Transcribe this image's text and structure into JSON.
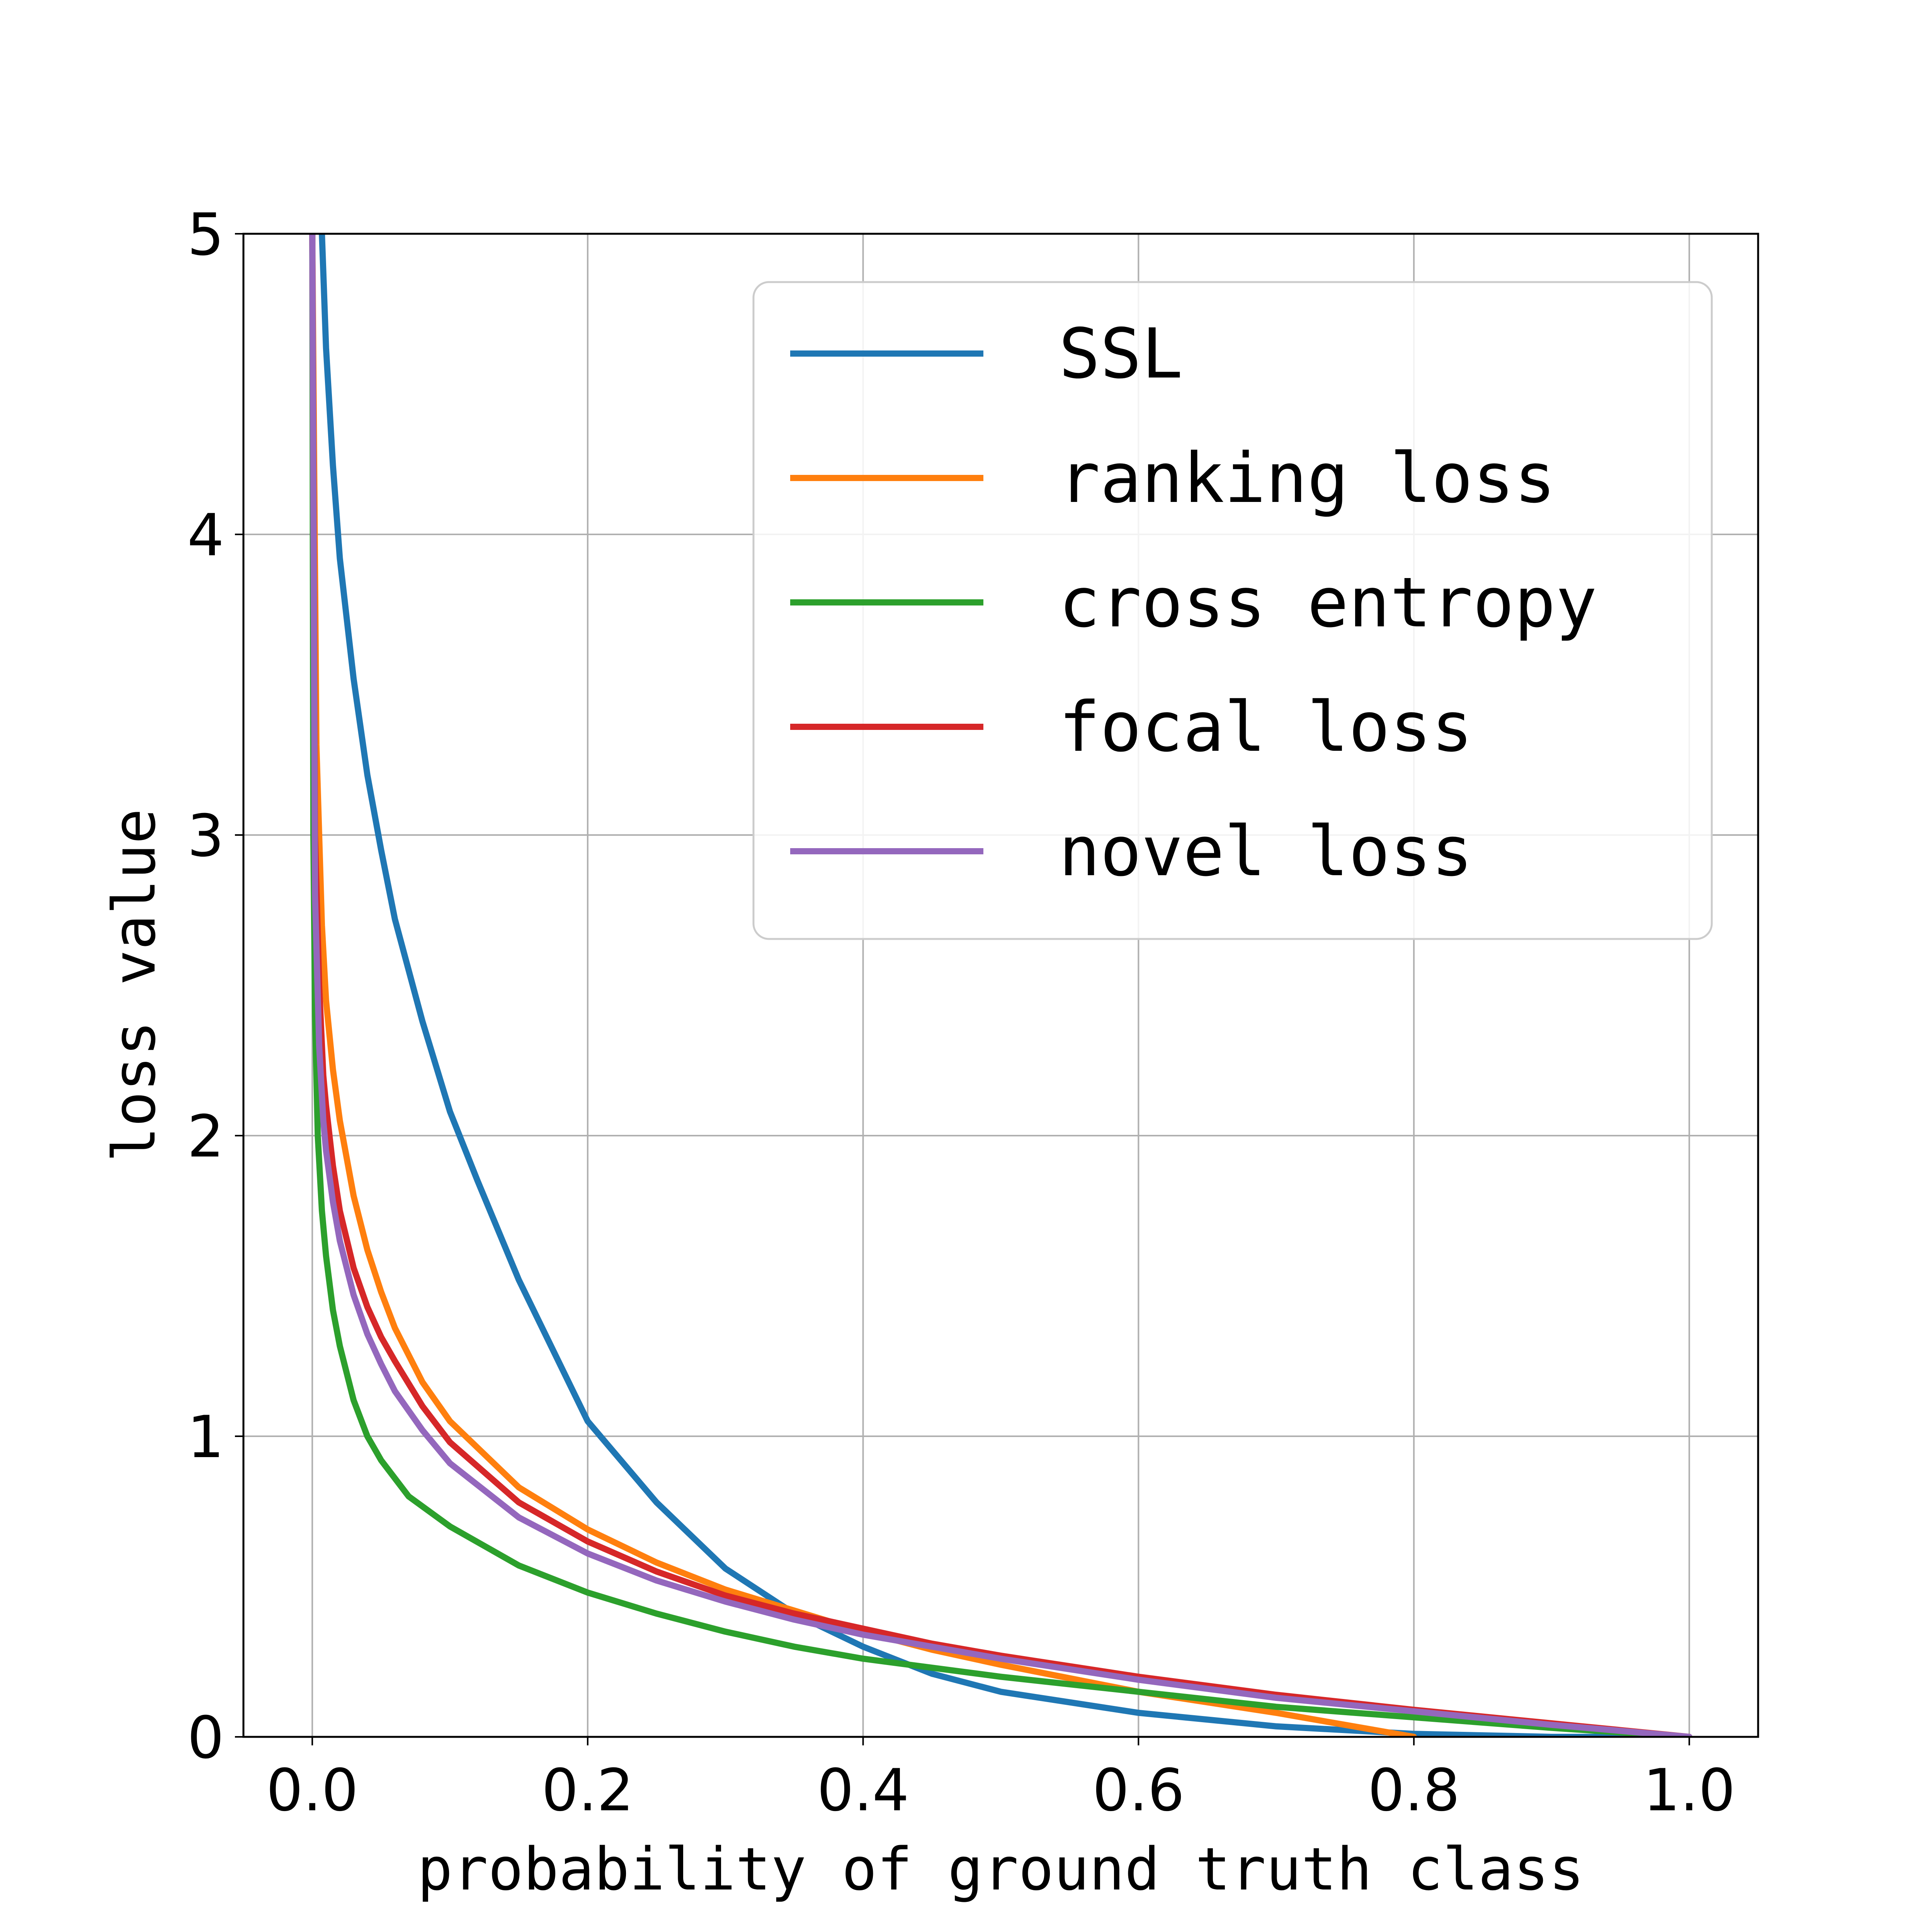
{
  "chart_data": {
    "type": "line",
    "title": "",
    "xlabel": "probability of ground truth class",
    "ylabel": "loss value",
    "xlim": [
      -0.05,
      1.05
    ],
    "ylim": [
      0,
      5
    ],
    "xticks": [
      0.0,
      0.2,
      0.4,
      0.6,
      0.8,
      1.0
    ],
    "xtick_labels": [
      "0.0",
      "0.2",
      "0.4",
      "0.6",
      "0.8",
      "1.0"
    ],
    "yticks": [
      0,
      1,
      2,
      3,
      4,
      5
    ],
    "ytick_labels": [
      "0",
      "1",
      "2",
      "3",
      "4",
      "5"
    ],
    "grid": true,
    "legend_position": "upper-right",
    "series": [
      {
        "name": "SSL",
        "color": "#1f77b4",
        "points": [
          [
            0.007,
            5.0
          ],
          [
            0.01,
            4.62
          ],
          [
            0.015,
            4.23
          ],
          [
            0.02,
            3.92
          ],
          [
            0.03,
            3.52
          ],
          [
            0.04,
            3.2
          ],
          [
            0.05,
            2.95
          ],
          [
            0.06,
            2.72
          ],
          [
            0.08,
            2.38
          ],
          [
            0.1,
            2.08
          ],
          [
            0.12,
            1.85
          ],
          [
            0.15,
            1.52
          ],
          [
            0.2,
            1.05
          ],
          [
            0.25,
            0.78
          ],
          [
            0.3,
            0.56
          ],
          [
            0.35,
            0.41
          ],
          [
            0.4,
            0.3
          ],
          [
            0.45,
            0.21
          ],
          [
            0.5,
            0.15
          ],
          [
            0.6,
            0.08
          ],
          [
            0.7,
            0.035
          ],
          [
            0.8,
            0.01
          ],
          [
            0.9,
            0.0
          ],
          [
            1.0,
            0.0
          ]
        ]
      },
      {
        "name": "ranking loss",
        "color": "#ff7f0e",
        "points": [
          [
            0.0,
            5.0
          ],
          [
            0.003,
            3.3
          ],
          [
            0.007,
            2.7
          ],
          [
            0.01,
            2.45
          ],
          [
            0.015,
            2.22
          ],
          [
            0.02,
            2.05
          ],
          [
            0.03,
            1.8
          ],
          [
            0.04,
            1.62
          ],
          [
            0.05,
            1.48
          ],
          [
            0.06,
            1.36
          ],
          [
            0.08,
            1.18
          ],
          [
            0.1,
            1.05
          ],
          [
            0.15,
            0.83
          ],
          [
            0.2,
            0.69
          ],
          [
            0.25,
            0.58
          ],
          [
            0.3,
            0.49
          ],
          [
            0.35,
            0.42
          ],
          [
            0.4,
            0.35
          ],
          [
            0.45,
            0.29
          ],
          [
            0.5,
            0.24
          ],
          [
            0.6,
            0.15
          ],
          [
            0.7,
            0.08
          ],
          [
            0.8,
            0.0
          ]
        ]
      },
      {
        "name": "cross entropy",
        "color": "#2ca02c",
        "points": [
          [
            0.0,
            5.0
          ],
          [
            0.0008,
            3.0
          ],
          [
            0.002,
            2.4
          ],
          [
            0.004,
            2.0
          ],
          [
            0.007,
            1.75
          ],
          [
            0.01,
            1.6
          ],
          [
            0.015,
            1.42
          ],
          [
            0.02,
            1.3
          ],
          [
            0.03,
            1.12
          ],
          [
            0.04,
            1.0
          ],
          [
            0.05,
            0.92
          ],
          [
            0.07,
            0.8
          ],
          [
            0.1,
            0.7
          ],
          [
            0.15,
            0.57
          ],
          [
            0.2,
            0.48
          ],
          [
            0.25,
            0.41
          ],
          [
            0.3,
            0.35
          ],
          [
            0.35,
            0.3
          ],
          [
            0.4,
            0.26
          ],
          [
            0.5,
            0.2
          ],
          [
            0.6,
            0.15
          ],
          [
            0.7,
            0.1
          ],
          [
            0.8,
            0.065
          ],
          [
            0.9,
            0.03
          ],
          [
            1.0,
            0.0
          ]
        ]
      },
      {
        "name": "focal loss",
        "color": "#d62728",
        "points": [
          [
            0.0,
            5.0
          ],
          [
            0.002,
            3.0
          ],
          [
            0.005,
            2.5
          ],
          [
            0.008,
            2.2
          ],
          [
            0.01,
            2.1
          ],
          [
            0.015,
            1.9
          ],
          [
            0.02,
            1.75
          ],
          [
            0.03,
            1.56
          ],
          [
            0.04,
            1.43
          ],
          [
            0.05,
            1.33
          ],
          [
            0.06,
            1.25
          ],
          [
            0.08,
            1.1
          ],
          [
            0.1,
            0.98
          ],
          [
            0.15,
            0.78
          ],
          [
            0.2,
            0.65
          ],
          [
            0.25,
            0.55
          ],
          [
            0.3,
            0.47
          ],
          [
            0.35,
            0.41
          ],
          [
            0.4,
            0.36
          ],
          [
            0.45,
            0.31
          ],
          [
            0.5,
            0.27
          ],
          [
            0.6,
            0.2
          ],
          [
            0.7,
            0.14
          ],
          [
            0.8,
            0.09
          ],
          [
            0.9,
            0.045
          ],
          [
            1.0,
            0.0
          ]
        ]
      },
      {
        "name": "novel loss",
        "color": "#9467bd",
        "points": [
          [
            0.0,
            5.0
          ],
          [
            0.002,
            2.8
          ],
          [
            0.005,
            2.3
          ],
          [
            0.008,
            2.05
          ],
          [
            0.01,
            1.95
          ],
          [
            0.015,
            1.78
          ],
          [
            0.02,
            1.65
          ],
          [
            0.03,
            1.47
          ],
          [
            0.04,
            1.34
          ],
          [
            0.05,
            1.24
          ],
          [
            0.06,
            1.15
          ],
          [
            0.08,
            1.02
          ],
          [
            0.1,
            0.91
          ],
          [
            0.15,
            0.73
          ],
          [
            0.2,
            0.61
          ],
          [
            0.25,
            0.52
          ],
          [
            0.3,
            0.45
          ],
          [
            0.35,
            0.39
          ],
          [
            0.4,
            0.34
          ],
          [
            0.45,
            0.3
          ],
          [
            0.5,
            0.26
          ],
          [
            0.6,
            0.19
          ],
          [
            0.7,
            0.13
          ],
          [
            0.8,
            0.085
          ],
          [
            0.9,
            0.04
          ],
          [
            1.0,
            0.0
          ]
        ]
      }
    ]
  }
}
